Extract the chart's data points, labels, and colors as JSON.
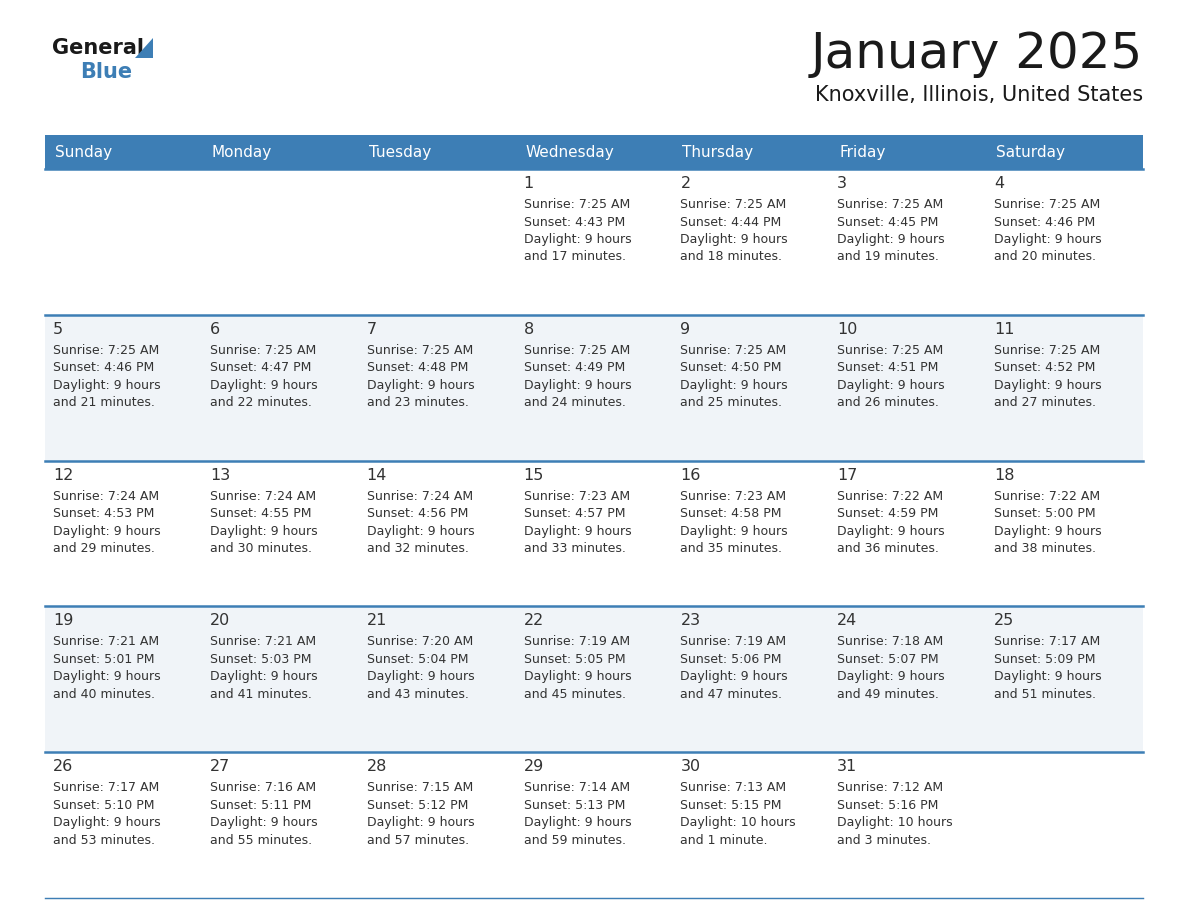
{
  "title": "January 2025",
  "subtitle": "Knoxville, Illinois, United States",
  "header_color": "#3D7EB5",
  "header_text_color": "#FFFFFF",
  "cell_bg_light": "#F0F4F8",
  "cell_bg_white": "#FFFFFF",
  "title_color": "#1a1a1a",
  "subtitle_color": "#1a1a1a",
  "text_color": "#333333",
  "days_of_week": [
    "Sunday",
    "Monday",
    "Tuesday",
    "Wednesday",
    "Thursday",
    "Friday",
    "Saturday"
  ],
  "weeks": [
    [
      {
        "day": "",
        "sunrise": "",
        "sunset": "",
        "daylight": ""
      },
      {
        "day": "",
        "sunrise": "",
        "sunset": "",
        "daylight": ""
      },
      {
        "day": "",
        "sunrise": "",
        "sunset": "",
        "daylight": ""
      },
      {
        "day": "1",
        "sunrise": "7:25 AM",
        "sunset": "4:43 PM",
        "daylight": "9 hours and 17 minutes."
      },
      {
        "day": "2",
        "sunrise": "7:25 AM",
        "sunset": "4:44 PM",
        "daylight": "9 hours and 18 minutes."
      },
      {
        "day": "3",
        "sunrise": "7:25 AM",
        "sunset": "4:45 PM",
        "daylight": "9 hours and 19 minutes."
      },
      {
        "day": "4",
        "sunrise": "7:25 AM",
        "sunset": "4:46 PM",
        "daylight": "9 hours and 20 minutes."
      }
    ],
    [
      {
        "day": "5",
        "sunrise": "7:25 AM",
        "sunset": "4:46 PM",
        "daylight": "9 hours and 21 minutes."
      },
      {
        "day": "6",
        "sunrise": "7:25 AM",
        "sunset": "4:47 PM",
        "daylight": "9 hours and 22 minutes."
      },
      {
        "day": "7",
        "sunrise": "7:25 AM",
        "sunset": "4:48 PM",
        "daylight": "9 hours and 23 minutes."
      },
      {
        "day": "8",
        "sunrise": "7:25 AM",
        "sunset": "4:49 PM",
        "daylight": "9 hours and 24 minutes."
      },
      {
        "day": "9",
        "sunrise": "7:25 AM",
        "sunset": "4:50 PM",
        "daylight": "9 hours and 25 minutes."
      },
      {
        "day": "10",
        "sunrise": "7:25 AM",
        "sunset": "4:51 PM",
        "daylight": "9 hours and 26 minutes."
      },
      {
        "day": "11",
        "sunrise": "7:25 AM",
        "sunset": "4:52 PM",
        "daylight": "9 hours and 27 minutes."
      }
    ],
    [
      {
        "day": "12",
        "sunrise": "7:24 AM",
        "sunset": "4:53 PM",
        "daylight": "9 hours and 29 minutes."
      },
      {
        "day": "13",
        "sunrise": "7:24 AM",
        "sunset": "4:55 PM",
        "daylight": "9 hours and 30 minutes."
      },
      {
        "day": "14",
        "sunrise": "7:24 AM",
        "sunset": "4:56 PM",
        "daylight": "9 hours and 32 minutes."
      },
      {
        "day": "15",
        "sunrise": "7:23 AM",
        "sunset": "4:57 PM",
        "daylight": "9 hours and 33 minutes."
      },
      {
        "day": "16",
        "sunrise": "7:23 AM",
        "sunset": "4:58 PM",
        "daylight": "9 hours and 35 minutes."
      },
      {
        "day": "17",
        "sunrise": "7:22 AM",
        "sunset": "4:59 PM",
        "daylight": "9 hours and 36 minutes."
      },
      {
        "day": "18",
        "sunrise": "7:22 AM",
        "sunset": "5:00 PM",
        "daylight": "9 hours and 38 minutes."
      }
    ],
    [
      {
        "day": "19",
        "sunrise": "7:21 AM",
        "sunset": "5:01 PM",
        "daylight": "9 hours and 40 minutes."
      },
      {
        "day": "20",
        "sunrise": "7:21 AM",
        "sunset": "5:03 PM",
        "daylight": "9 hours and 41 minutes."
      },
      {
        "day": "21",
        "sunrise": "7:20 AM",
        "sunset": "5:04 PM",
        "daylight": "9 hours and 43 minutes."
      },
      {
        "day": "22",
        "sunrise": "7:19 AM",
        "sunset": "5:05 PM",
        "daylight": "9 hours and 45 minutes."
      },
      {
        "day": "23",
        "sunrise": "7:19 AM",
        "sunset": "5:06 PM",
        "daylight": "9 hours and 47 minutes."
      },
      {
        "day": "24",
        "sunrise": "7:18 AM",
        "sunset": "5:07 PM",
        "daylight": "9 hours and 49 minutes."
      },
      {
        "day": "25",
        "sunrise": "7:17 AM",
        "sunset": "5:09 PM",
        "daylight": "9 hours and 51 minutes."
      }
    ],
    [
      {
        "day": "26",
        "sunrise": "7:17 AM",
        "sunset": "5:10 PM",
        "daylight": "9 hours and 53 minutes."
      },
      {
        "day": "27",
        "sunrise": "7:16 AM",
        "sunset": "5:11 PM",
        "daylight": "9 hours and 55 minutes."
      },
      {
        "day": "28",
        "sunrise": "7:15 AM",
        "sunset": "5:12 PM",
        "daylight": "9 hours and 57 minutes."
      },
      {
        "day": "29",
        "sunrise": "7:14 AM",
        "sunset": "5:13 PM",
        "daylight": "9 hours and 59 minutes."
      },
      {
        "day": "30",
        "sunrise": "7:13 AM",
        "sunset": "5:15 PM",
        "daylight": "10 hours and 1 minute."
      },
      {
        "day": "31",
        "sunrise": "7:12 AM",
        "sunset": "5:16 PM",
        "daylight": "10 hours and 3 minutes."
      },
      {
        "day": "",
        "sunrise": "",
        "sunset": "",
        "daylight": ""
      }
    ]
  ]
}
